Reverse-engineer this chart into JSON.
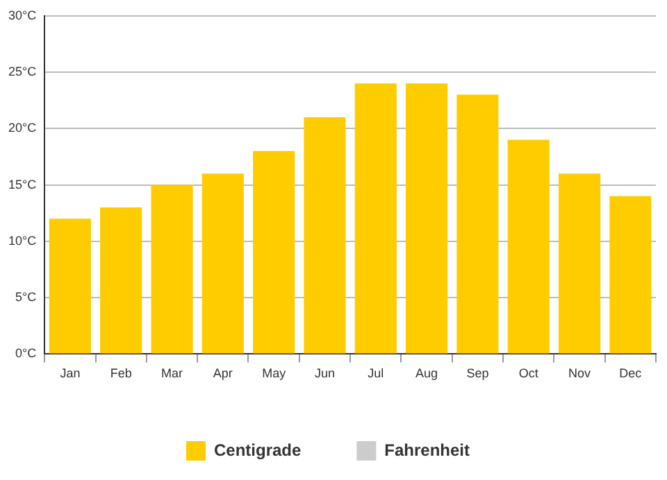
{
  "chart_data": {
    "type": "bar",
    "categories": [
      "Jan",
      "Feb",
      "Mar",
      "Apr",
      "May",
      "Jun",
      "Jul",
      "Aug",
      "Sep",
      "Oct",
      "Nov",
      "Dec"
    ],
    "series": [
      {
        "name": "Centigrade",
        "color": "#ffcc00",
        "values": [
          12,
          13,
          15,
          16,
          18,
          21,
          24,
          24,
          23,
          19,
          16,
          14
        ]
      },
      {
        "name": "Fahrenheit",
        "color": "#cccccc",
        "values": [
          null,
          null,
          null,
          null,
          null,
          null,
          null,
          null,
          null,
          null,
          null,
          null
        ]
      }
    ],
    "ylim": [
      0,
      30
    ],
    "yticks": [
      {
        "value": 0,
        "label": "0°C"
      },
      {
        "value": 5,
        "label": "5°C"
      },
      {
        "value": 10,
        "label": "10°C"
      },
      {
        "value": 15,
        "label": "15°C"
      },
      {
        "value": 20,
        "label": "20°C"
      },
      {
        "value": 25,
        "label": "25°C"
      },
      {
        "value": 30,
        "label": "30°C"
      }
    ],
    "grid": "y",
    "legend": "bottom"
  }
}
